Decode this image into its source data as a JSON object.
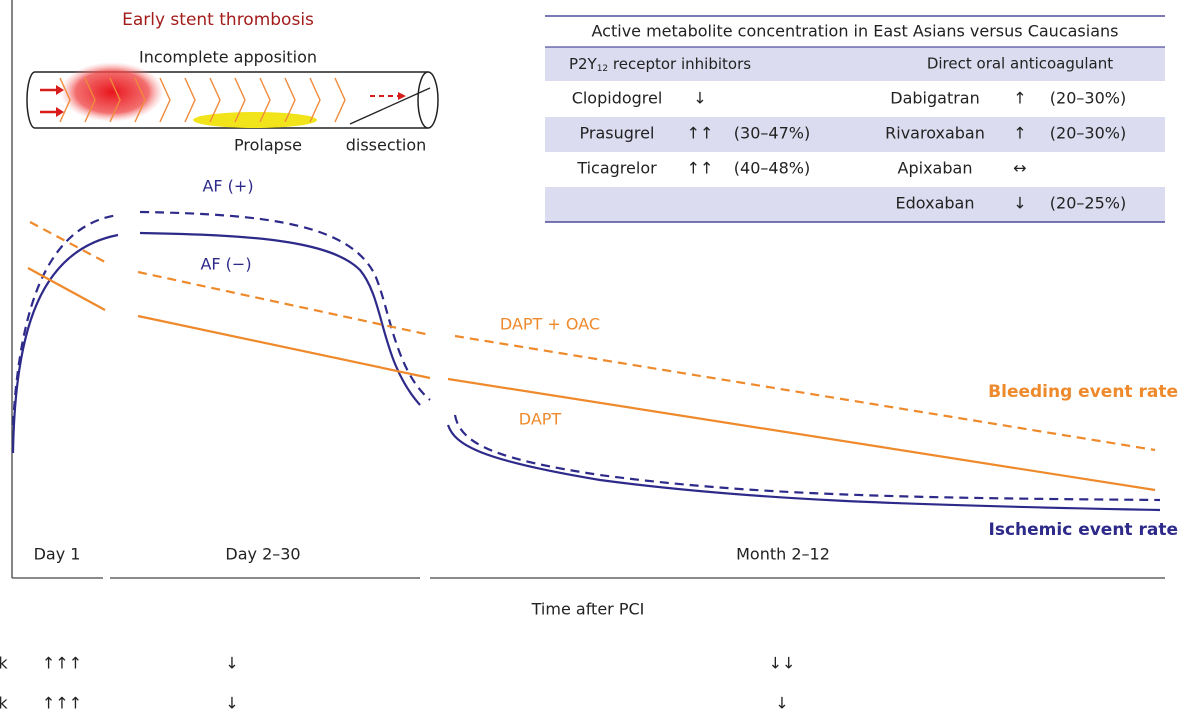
{
  "figure": {
    "stent_title": "Early stent thrombosis",
    "stent_labels": [
      "Incomplete apposition",
      "Prolapse",
      "dissection"
    ],
    "curve_labels": [
      "AF (+)",
      "AF (−)",
      "DAPT + OAC",
      "DAPT"
    ],
    "rate_labels": [
      "Bleeding event rate",
      "Ischemic event rate"
    ],
    "periods": [
      "Day 1",
      "Day 2–30",
      "Month 2–12"
    ],
    "x_axis_label": "Time after PCI",
    "bottom_rows": [
      [
        "k",
        "↑↑↑",
        "↓",
        "↓↓"
      ],
      [
        "k",
        "↑↑↑",
        "↓",
        "↓"
      ]
    ]
  },
  "table": {
    "title": "Active metabolite concentration in East Asians versus Caucasians",
    "header_left": {
      "main": "P2Y",
      "sub": "12",
      "rest": " receptor inhibitors"
    },
    "header_right": "Direct oral anticoagulant",
    "rows": [
      {
        "left": [
          "Clopidogrel",
          "↓"
        ],
        "right": [
          "Dabigatran",
          "↑",
          "(20–30%)"
        ]
      },
      {
        "left": [
          "Prasugrel",
          "↑↑",
          "(30–47%)"
        ],
        "right": [
          "Rivaroxaban",
          "↑",
          "(20–30%)"
        ]
      },
      {
        "left": [
          "Ticagrelor",
          "↑↑",
          "(40–48%)"
        ],
        "right": [
          "Apixaban",
          "↔"
        ]
      },
      {
        "right": [
          "Edoxaban",
          "↓",
          "(20–25%)"
        ]
      }
    ]
  }
}
